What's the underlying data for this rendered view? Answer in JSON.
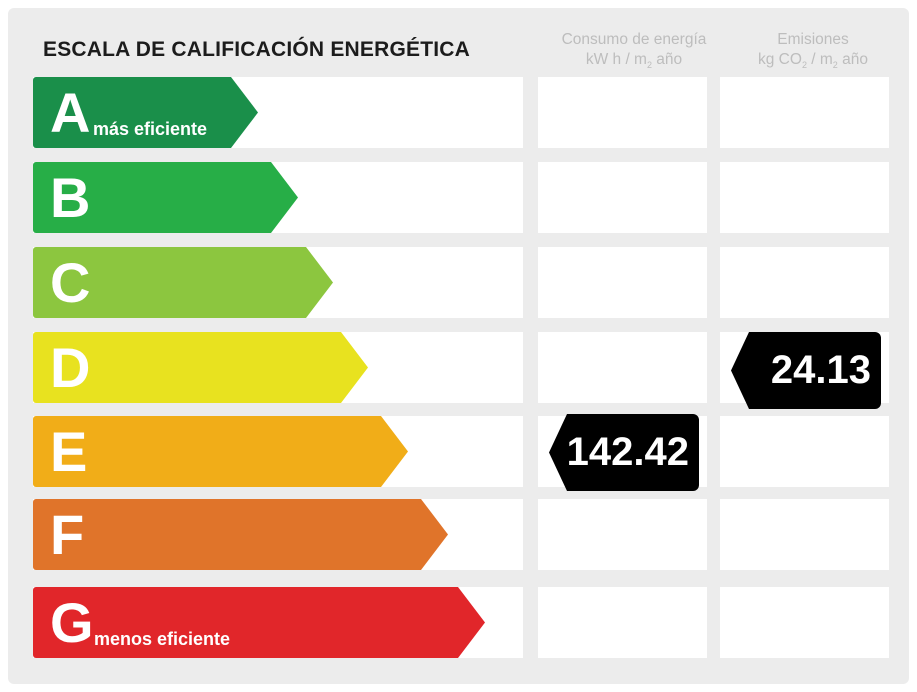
{
  "title": "ESCALA DE CALIFICACIÓN ENERGÉTICA",
  "columns": {
    "consumo": {
      "line1": "Consumo de energía",
      "line2_pre": "kW h / m",
      "line2_sub": "2",
      "line2_post": " año"
    },
    "emisiones": {
      "line1": "Emisiones",
      "line2_pre": "kg CO",
      "line2_sub": "2",
      "line2_mid": " / m",
      "line2_sub2": "2",
      "line2_post": " año"
    }
  },
  "grades": [
    {
      "letter": "A",
      "note": "más eficiente",
      "color": "#1a8f4a"
    },
    {
      "letter": "B",
      "note": "",
      "color": "#27ae47"
    },
    {
      "letter": "C",
      "note": "",
      "color": "#8cc63f"
    },
    {
      "letter": "D",
      "note": "",
      "color": "#e8e21f"
    },
    {
      "letter": "E",
      "note": "",
      "color": "#f1ad18"
    },
    {
      "letter": "F",
      "note": "",
      "color": "#e0742a"
    },
    {
      "letter": "G",
      "note": "menos eficiente",
      "color": "#e1262a"
    }
  ],
  "consumo_value": "142.42",
  "consumo_grade": "E",
  "emisiones_value": "24.13",
  "emisiones_grade": "D"
}
